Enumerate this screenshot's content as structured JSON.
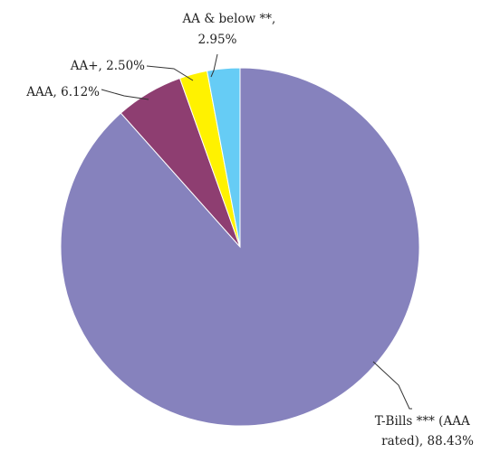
{
  "chart_data": {
    "type": "pie",
    "slices": [
      {
        "name": "T-Bills *** (AAA rated)",
        "value": 88.43,
        "value_label": "88.43%",
        "label_lines": [
          "T-Bills *** (AAA",
          "rated), 88.43%"
        ],
        "color": "#8682bd"
      },
      {
        "name": "AAA",
        "value": 6.12,
        "value_label": "6.12%",
        "label_lines": [
          "AAA, 6.12%"
        ],
        "color": "#8e3e71"
      },
      {
        "name": "AA+",
        "value": 2.5,
        "value_label": "2.50%",
        "label_lines": [
          "AA+, 2.50%"
        ],
        "color": "#fff200"
      },
      {
        "name": "AA & below **",
        "value": 2.95,
        "value_label": "2.95%",
        "label_lines": [
          "AA & below **,",
          "2.95%"
        ],
        "color": "#66ccf5"
      }
    ],
    "start": "12 o'clock",
    "direction": "clockwise",
    "legend": "none"
  }
}
